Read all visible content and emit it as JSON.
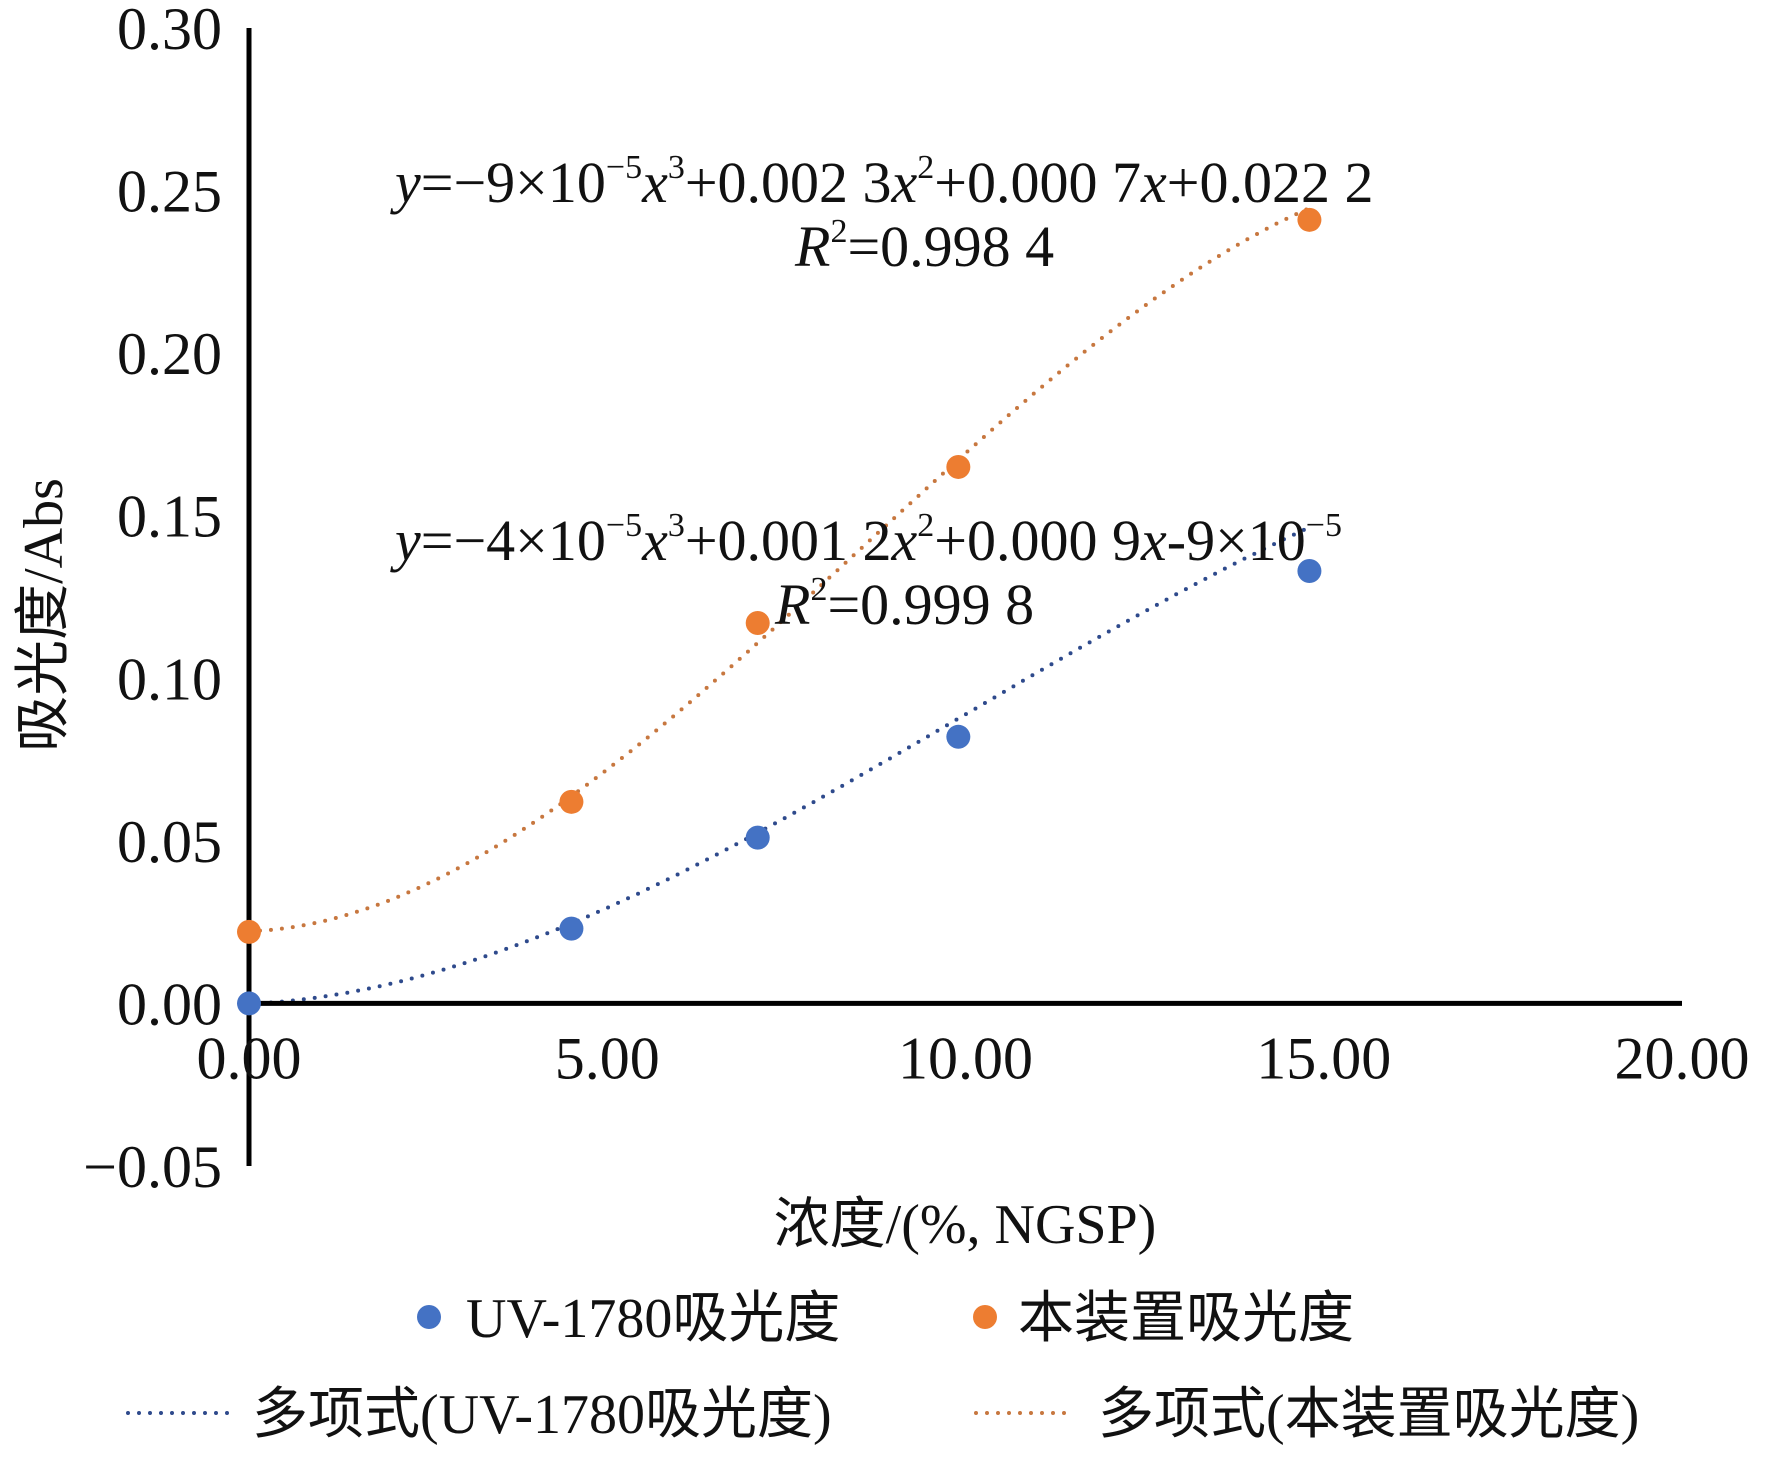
{
  "chart_data": {
    "type": "scatter",
    "title": "",
    "xlabel": "浓度/(%, NGSP)",
    "ylabel": "吸光度/Abs",
    "xlim": [
      0,
      20
    ],
    "ylim": [
      -0.05,
      0.3
    ],
    "x_ticks": [
      "0.00",
      "5.00",
      "10.00",
      "15.00",
      "20.00"
    ],
    "x_tick_values": [
      0,
      5,
      10,
      15,
      20
    ],
    "y_ticks": [
      "0.30",
      "0.25",
      "0.20",
      "0.15",
      "0.10",
      "0.05",
      "0.00",
      "−0.05"
    ],
    "y_tick_values": [
      0.3,
      0.25,
      0.2,
      0.15,
      0.1,
      0.05,
      0.0,
      -0.05
    ],
    "grid": false,
    "legend_position": "bottom",
    "series": [
      {
        "name": "UV-1780吸光度",
        "color": "#4472C4",
        "x": [
          0,
          4.5,
          7.1,
          9.9,
          14.8
        ],
        "y": [
          0.0,
          0.023,
          0.051,
          0.082,
          0.133
        ],
        "trendline": {
          "name": "多项式(UV-1780吸光度)",
          "type": "polynomial",
          "order": 3,
          "coefficients": [
            -4e-05,
            0.0012,
            0.0009,
            -9e-05
          ],
          "color": "#2E4A8C",
          "equation_parts": [
            {
              "t": "y",
              "i": true
            },
            {
              "t": "=−4×10"
            },
            {
              "t": "−5",
              "sup": true
            },
            {
              "t": "x",
              "i": true
            },
            {
              "t": "3",
              "sup": true
            },
            {
              "t": "+0.001 2"
            },
            {
              "t": "x",
              "i": true
            },
            {
              "t": "2",
              "sup": true
            },
            {
              "t": "+0.000 9"
            },
            {
              "t": "x",
              "i": true
            },
            {
              "t": "-9×10"
            },
            {
              "t": "−5",
              "sup": true
            }
          ],
          "r2_parts": [
            {
              "t": "R",
              "i": true
            },
            {
              "t": "2",
              "sup": true
            },
            {
              "t": "=0.999 8"
            }
          ]
        }
      },
      {
        "name": "本装置吸光度",
        "color": "#ED7D31",
        "x": [
          0,
          4.5,
          7.1,
          9.9,
          14.8
        ],
        "y": [
          0.022,
          0.062,
          0.117,
          0.165,
          0.241
        ],
        "trendline": {
          "name": "多项式(本装置吸光度)",
          "type": "polynomial",
          "order": 3,
          "coefficients": [
            -9e-05,
            0.0023,
            0.0007,
            0.0222
          ],
          "color": "#C7773F",
          "equation_parts": [
            {
              "t": "y",
              "i": true
            },
            {
              "t": "=−9×10"
            },
            {
              "t": "−5",
              "sup": true
            },
            {
              "t": "x",
              "i": true
            },
            {
              "t": "3",
              "sup": true
            },
            {
              "t": "+0.002 3"
            },
            {
              "t": "x",
              "i": true
            },
            {
              "t": "2",
              "sup": true
            },
            {
              "t": "+0.000 7"
            },
            {
              "t": "x",
              "i": true
            },
            {
              "t": "+0.022 2"
            }
          ],
          "r2_parts": [
            {
              "t": "R",
              "i": true
            },
            {
              "t": "2",
              "sup": true
            },
            {
              "t": "=0.998 4"
            }
          ]
        }
      }
    ],
    "annotations": [
      {
        "series_index": 1,
        "equation": "y=−9×10^−5x^3+0.002 3x^2+0.000 7x+0.022 2",
        "r2": "R^2=0.998 4"
      },
      {
        "series_index": 0,
        "equation": "y=−4×10^−5x^3+0.001 2x^2+0.000 9x-9×10^−5",
        "r2": "R^2=0.999 8"
      }
    ]
  },
  "legend": {
    "items": [
      {
        "label": "UV-1780吸光度",
        "kind": "marker",
        "color": "#4472C4"
      },
      {
        "label": "本装置吸光度",
        "kind": "marker",
        "color": "#ED7D31"
      },
      {
        "label": "多项式(UV-1780吸光度)",
        "kind": "dotted-line",
        "color": "#2E4A8C"
      },
      {
        "label": "多项式(本装置吸光度)",
        "kind": "dotted-line",
        "color": "#C7773F"
      }
    ]
  }
}
